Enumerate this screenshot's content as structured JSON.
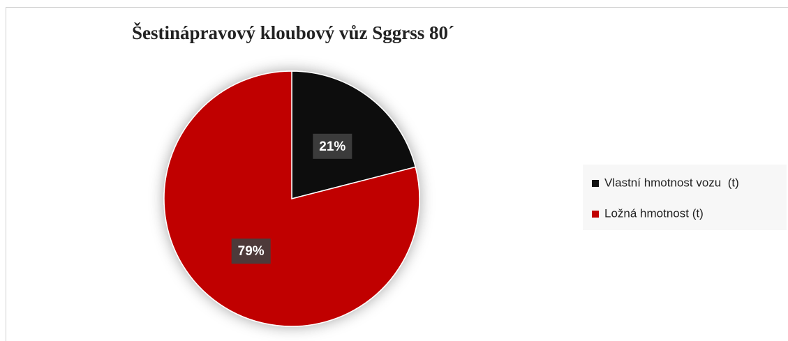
{
  "chart_data": {
    "type": "pie",
    "title": "Šestinápravový kloubový vůz Sggrss 80´",
    "categories": [
      "Vlastní hmotnost vozu  (t)",
      "Ložná hmotnost (t)"
    ],
    "values": [
      21,
      79
    ],
    "value_labels": [
      "21%",
      "79%"
    ],
    "colors": [
      "#111111",
      "#c00000"
    ],
    "legend": "right"
  }
}
